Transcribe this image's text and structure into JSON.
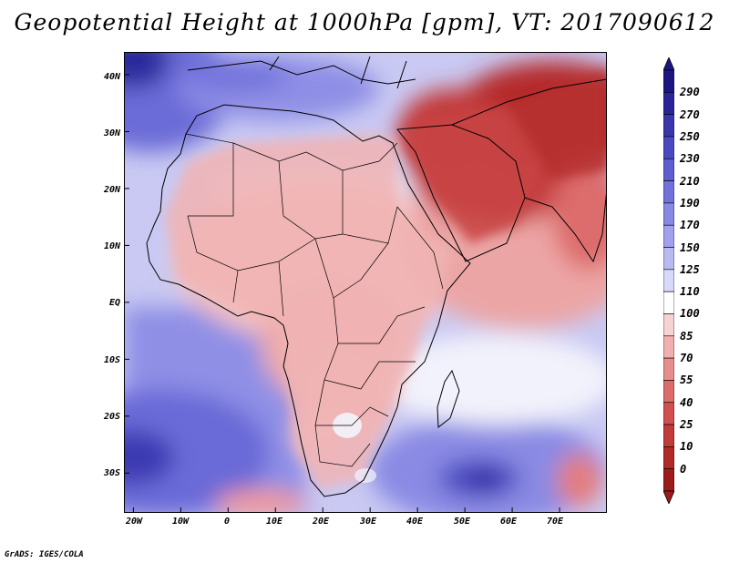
{
  "title": "Geopotential Height at 1000hPa [gpm], VT: 2017090612",
  "credit": "GrADS: IGES/COLA",
  "map": {
    "variable": "Geopotential Height",
    "level": "1000hPa",
    "units": "gpm",
    "valid_time": "2017090612",
    "lon_range": [
      -22,
      80
    ],
    "lat_range": [
      -37,
      44
    ],
    "lat_labels": [
      "40N",
      "30N",
      "20N",
      "10N",
      "EQ",
      "10S",
      "20S",
      "30S"
    ],
    "lat_values": [
      40,
      30,
      20,
      10,
      0,
      -10,
      -20,
      -30
    ],
    "lon_labels": [
      "20W",
      "10W",
      "0",
      "10E",
      "20E",
      "30E",
      "40E",
      "50E",
      "60E",
      "70E"
    ],
    "lon_values": [
      -20,
      -10,
      0,
      10,
      20,
      30,
      40,
      50,
      60,
      70
    ]
  },
  "colorbar": {
    "labels": [
      "290",
      "270",
      "250",
      "230",
      "210",
      "190",
      "170",
      "150",
      "125",
      "110",
      "100",
      "85",
      "70",
      "55",
      "40",
      "25",
      "10",
      "0"
    ],
    "colors": [
      "#1c1780",
      "#2a2699",
      "#3a37ad",
      "#4a4ac0",
      "#5e5ed0",
      "#7272dd",
      "#8888e6",
      "#a1a1ee",
      "#babaf2",
      "#d8d8f8",
      "#ffffff",
      "#f7d2d2",
      "#f1b0b0",
      "#e68e8e",
      "#dc6b6b",
      "#d05050",
      "#c23a3a",
      "#b02a2a",
      "#9c1c1c"
    ]
  }
}
